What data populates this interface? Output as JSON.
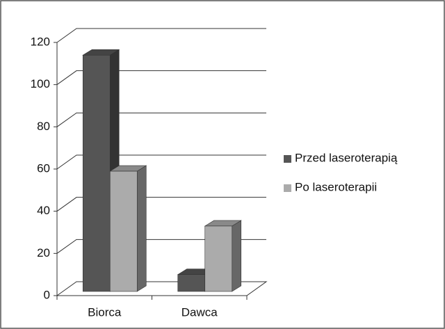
{
  "chart_data": {
    "type": "bar3d",
    "categories": [
      "Biorca",
      "Dawca"
    ],
    "series": [
      {
        "name": "Przed laseroterapią",
        "color": "#555555",
        "values": [
          112,
          8
        ]
      },
      {
        "name": "Po laseroterapii",
        "color": "#ababab",
        "values": [
          57,
          31
        ]
      }
    ],
    "ylim": [
      0,
      120
    ],
    "yticks": [
      0,
      20,
      40,
      60,
      80,
      100,
      120
    ],
    "grid": true,
    "legend": "right"
  }
}
